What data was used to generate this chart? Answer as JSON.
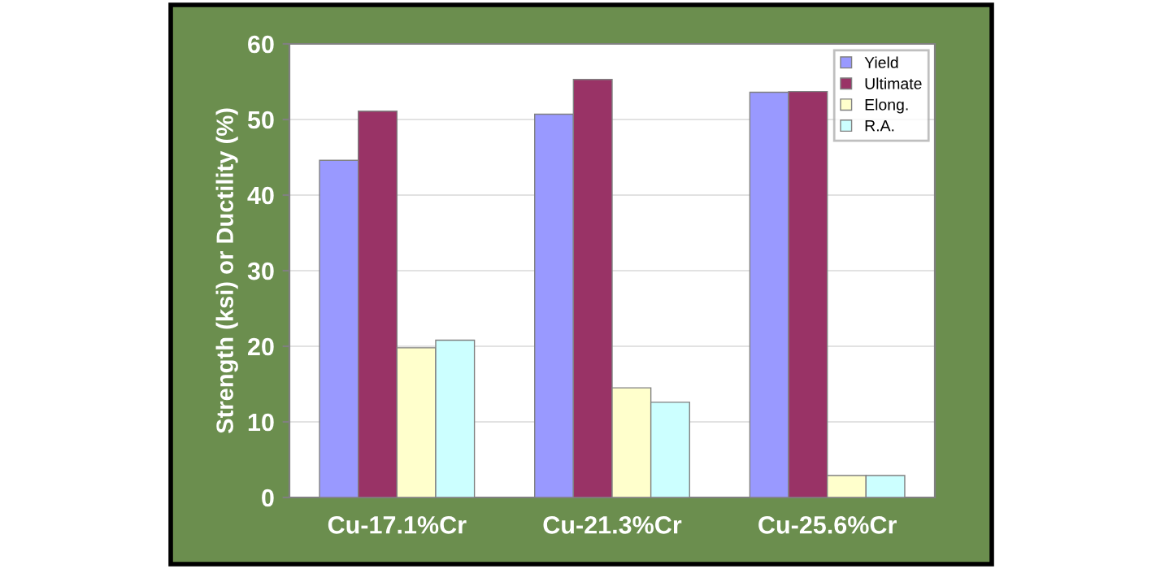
{
  "chart_data": {
    "type": "bar",
    "ylabel": "Strength (ksi) or Ductility (%)",
    "categories": [
      "Cu-17.1%Cr",
      "Cu-21.3%Cr",
      "Cu-25.6%Cr"
    ],
    "series": [
      {
        "name": "Yield",
        "color": "#9999ff",
        "values": [
          44.6,
          50.7,
          53.6
        ]
      },
      {
        "name": "Ultimate",
        "color": "#993366",
        "values": [
          51.1,
          55.3,
          53.7
        ]
      },
      {
        "name": "Elong.",
        "color": "#ffffcc",
        "values": [
          19.8,
          14.5,
          2.9
        ]
      },
      {
        "name": "R.A.",
        "color": "#ccffff",
        "values": [
          20.8,
          12.6,
          2.9
        ]
      }
    ],
    "ylim": [
      0,
      60
    ],
    "yticks": [
      0,
      10,
      20,
      30,
      40,
      50,
      60
    ],
    "grid": "y",
    "legend": "top right"
  }
}
